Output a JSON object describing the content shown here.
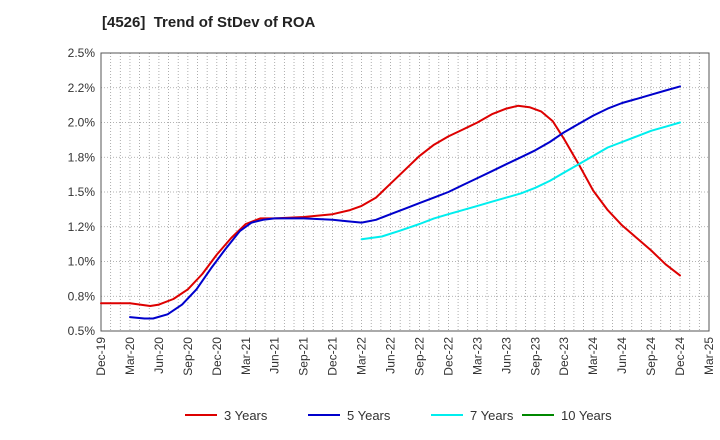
{
  "chart_data": {
    "type": "line",
    "title": "[4526]  Trend of StDev of ROA",
    "xlabel": "",
    "ylabel": "",
    "x_categories": [
      "Dec-19",
      "Mar-20",
      "Jun-20",
      "Sep-20",
      "Dec-20",
      "Mar-21",
      "Jun-21",
      "Sep-21",
      "Dec-21",
      "Mar-22",
      "Jun-22",
      "Sep-22",
      "Dec-22",
      "Mar-23",
      "Jun-23",
      "Sep-23",
      "Dec-23",
      "Mar-24",
      "Jun-24",
      "Sep-24",
      "Dec-24",
      "Mar-25"
    ],
    "y_ticks": [
      "0.5%",
      "0.8%",
      "1.0%",
      "1.2%",
      "1.5%",
      "1.8%",
      "2.0%",
      "2.2%",
      "2.5%"
    ],
    "ylim": [
      0.5,
      2.5
    ],
    "grid": true,
    "legend_position": "bottom",
    "series": [
      {
        "name": "3 Years",
        "color": "#dd0000",
        "points": [
          [
            0,
            0.7
          ],
          [
            1,
            0.7
          ],
          [
            1.7,
            0.68
          ],
          [
            2,
            0.69
          ],
          [
            2.5,
            0.73
          ],
          [
            3,
            0.8
          ],
          [
            3.5,
            0.91
          ],
          [
            4,
            1.05
          ],
          [
            4.5,
            1.17
          ],
          [
            5,
            1.27
          ],
          [
            5.5,
            1.31
          ],
          [
            6,
            1.31
          ],
          [
            7,
            1.32
          ],
          [
            8,
            1.34
          ],
          [
            8.6,
            1.37
          ],
          [
            9,
            1.4
          ],
          [
            9.5,
            1.46
          ],
          [
            10,
            1.56
          ],
          [
            10.5,
            1.66
          ],
          [
            11,
            1.76
          ],
          [
            11.5,
            1.84
          ],
          [
            12,
            1.9
          ],
          [
            12.5,
            1.95
          ],
          [
            13,
            2.0
          ],
          [
            13.5,
            2.06
          ],
          [
            14,
            2.1
          ],
          [
            14.4,
            2.12
          ],
          [
            14.8,
            2.11
          ],
          [
            15.2,
            2.08
          ],
          [
            15.6,
            2.01
          ],
          [
            16,
            1.88
          ],
          [
            16.5,
            1.7
          ],
          [
            17,
            1.51
          ],
          [
            17.5,
            1.37
          ],
          [
            18,
            1.26
          ],
          [
            18.5,
            1.17
          ],
          [
            19,
            1.08
          ],
          [
            19.5,
            0.98
          ],
          [
            20,
            0.9
          ]
        ]
      },
      {
        "name": "5 Years",
        "color": "#0000cc",
        "points": [
          [
            1,
            0.6
          ],
          [
            1.5,
            0.59
          ],
          [
            1.8,
            0.59
          ],
          [
            2.3,
            0.62
          ],
          [
            2.8,
            0.69
          ],
          [
            3.3,
            0.8
          ],
          [
            3.8,
            0.95
          ],
          [
            4.3,
            1.09
          ],
          [
            4.8,
            1.22
          ],
          [
            5.2,
            1.28
          ],
          [
            5.6,
            1.3
          ],
          [
            6,
            1.31
          ],
          [
            7,
            1.31
          ],
          [
            8,
            1.3
          ],
          [
            8.5,
            1.29
          ],
          [
            9,
            1.28
          ],
          [
            9.5,
            1.3
          ],
          [
            10,
            1.34
          ],
          [
            10.5,
            1.38
          ],
          [
            11,
            1.42
          ],
          [
            11.5,
            1.46
          ],
          [
            12,
            1.5
          ],
          [
            12.5,
            1.55
          ],
          [
            13,
            1.6
          ],
          [
            13.5,
            1.65
          ],
          [
            14,
            1.7
          ],
          [
            14.5,
            1.75
          ],
          [
            15,
            1.8
          ],
          [
            15.5,
            1.86
          ],
          [
            16,
            1.93
          ],
          [
            16.5,
            1.99
          ],
          [
            17,
            2.05
          ],
          [
            17.5,
            2.1
          ],
          [
            18,
            2.14
          ],
          [
            18.5,
            2.17
          ],
          [
            19,
            2.2
          ],
          [
            19.5,
            2.23
          ],
          [
            20,
            2.26
          ]
        ]
      },
      {
        "name": "7 Years",
        "color": "#00eeee",
        "points": [
          [
            9,
            1.16
          ],
          [
            9.7,
            1.18
          ],
          [
            10.3,
            1.22
          ],
          [
            11,
            1.27
          ],
          [
            11.5,
            1.31
          ],
          [
            12,
            1.34
          ],
          [
            12.5,
            1.37
          ],
          [
            13,
            1.4
          ],
          [
            13.5,
            1.43
          ],
          [
            14,
            1.46
          ],
          [
            14.5,
            1.49
          ],
          [
            15,
            1.53
          ],
          [
            15.5,
            1.58
          ],
          [
            16,
            1.64
          ],
          [
            16.5,
            1.7
          ],
          [
            17,
            1.76
          ],
          [
            17.5,
            1.82
          ],
          [
            18,
            1.86
          ],
          [
            18.5,
            1.9
          ],
          [
            19,
            1.94
          ],
          [
            19.5,
            1.97
          ],
          [
            20,
            2.0
          ]
        ]
      },
      {
        "name": "10 Years",
        "color": "#008800",
        "points": []
      }
    ]
  }
}
